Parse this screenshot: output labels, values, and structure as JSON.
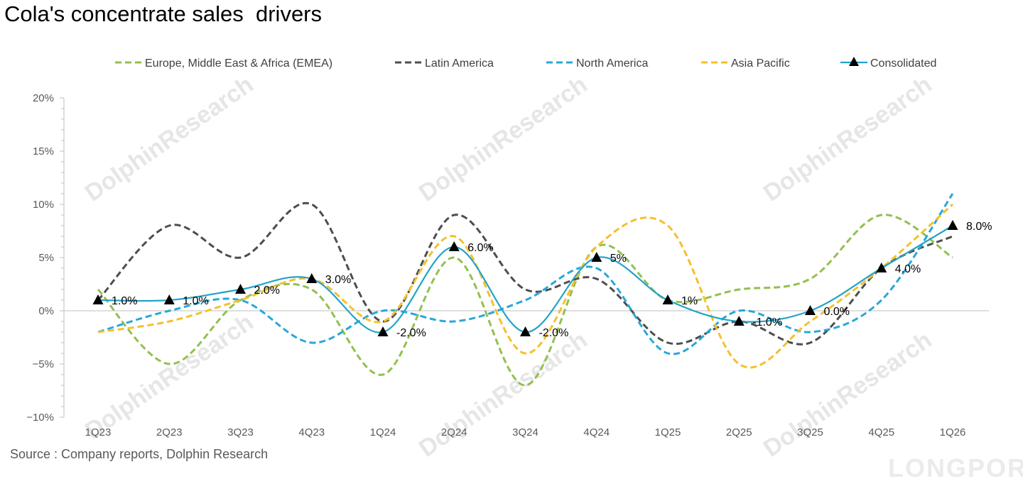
{
  "title": "Cola's concentrate sales  drivers",
  "source": "Source : Company reports, Dolphin Research",
  "watermark": {
    "brand": "DolphinResearch",
    "logo_text": "LONGPORT"
  },
  "chart_data": {
    "type": "line",
    "categories": [
      "1Q23",
      "2Q23",
      "3Q23",
      "4Q23",
      "1Q24",
      "2Q24",
      "3Q24",
      "4Q24",
      "1Q25",
      "2Q25",
      "3Q25",
      "4Q25",
      "1Q26"
    ],
    "ylim": [
      -10,
      20
    ],
    "yticks": [
      -10,
      -5,
      0,
      5,
      10,
      15,
      20
    ],
    "ytick_labels": [
      "−10%",
      "−5%",
      "0%",
      "5%",
      "10%",
      "15%",
      "20%"
    ],
    "xlabel": "",
    "ylabel": "",
    "grid": false,
    "legend_position": "top",
    "series": [
      {
        "name": "Europe, Middle East & Africa (EMEA)",
        "style": "dashed",
        "color": "#92c050",
        "values": [
          2,
          -5,
          1,
          2,
          -6,
          5,
          -7,
          6,
          1,
          2,
          3,
          9,
          5
        ]
      },
      {
        "name": "Latin America",
        "style": "dashed",
        "color": "#4d4d4d",
        "values": [
          1,
          8,
          5,
          10,
          -1,
          9,
          2,
          3,
          -3,
          -1,
          -3,
          4,
          7
        ]
      },
      {
        "name": "North America",
        "style": "dashed",
        "color": "#27a8d8",
        "values": [
          -2,
          0,
          1,
          -3,
          0,
          -1,
          1,
          4,
          -4,
          0,
          -2,
          1,
          11
        ]
      },
      {
        "name": "Asia Pacific",
        "style": "dashed",
        "color": "#f5c02a",
        "values": [
          -2,
          -1,
          1,
          3,
          -1,
          7,
          -4,
          6,
          8,
          -5,
          -1,
          4,
          10
        ]
      },
      {
        "name": "Consolidated",
        "style": "solid",
        "marker": "triangle",
        "color": "#22a3c9",
        "values": [
          1,
          1,
          2,
          3,
          -2,
          6,
          -2,
          5,
          1,
          -1,
          0,
          4,
          8
        ],
        "data_labels": [
          "1.0%",
          "1.0%",
          "2.0%",
          "3.0%",
          "-2.0%",
          "6.0%",
          "-2.0%",
          "5%",
          "1%",
          "-1.0%",
          "0.0%",
          "4.0%",
          "8.0%"
        ]
      }
    ]
  }
}
